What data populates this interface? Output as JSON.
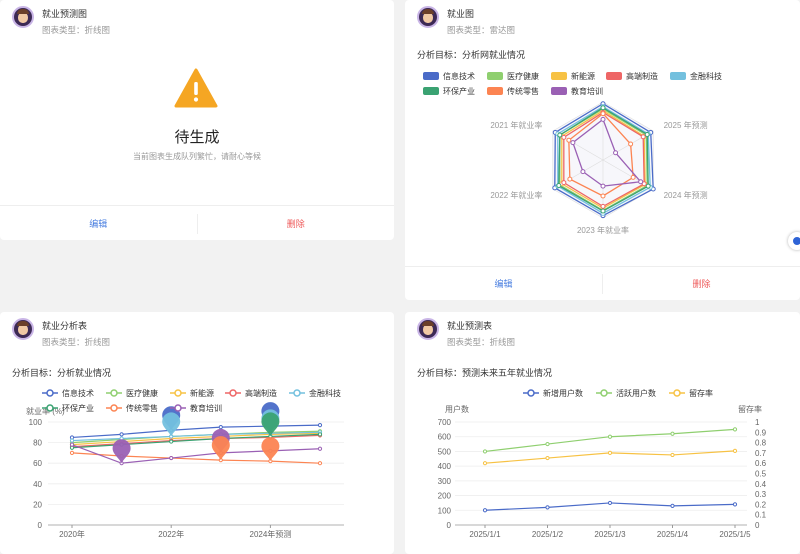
{
  "cards": {
    "predict_chart": {
      "title": "就业预测图",
      "type": "图表类型：折线图",
      "pending_title": "待生成",
      "pending_msg": "当前图表生成队列繁忙，请耐心等候",
      "edit": "编辑",
      "delete": "删除"
    },
    "employment_chart": {
      "title": "就业图",
      "type": "图表类型：雷达图",
      "goal": "分析目标：分析网就业情况",
      "edit": "编辑",
      "delete": "删除"
    },
    "analysis_table": {
      "title": "就业分析表",
      "type": "图表类型：折线图",
      "goal": "分析目标：分析就业情况"
    },
    "forecast_table": {
      "title": "就业预测表",
      "type": "图表类型：折线图",
      "goal": "分析目标：预测未来五年就业情况"
    }
  },
  "colors": {
    "信息技术": "#4a6bc8",
    "医疗健康": "#8fcf6f",
    "新能源": "#f7c244",
    "高端制造": "#ee6666",
    "金融科技": "#73c0de",
    "环保产业": "#3aa272",
    "传统零售": "#fc8452",
    "教育培训": "#9a60b4",
    "warning": "#f5a623",
    "edit": "#4a7fe0",
    "delete": "#ee5a5a"
  },
  "icons": [
    "user-avatar-icon",
    "warning-icon"
  ],
  "chart_data": [
    {
      "type": "radar",
      "indicators": [
        "2025 年预测",
        "2024 年预测",
        "2023 年就业率",
        "2022 年就业率",
        "2021 年就业率"
      ],
      "top_label_hidden_under_legend": true,
      "max": 100,
      "legend": [
        "信息技术",
        "医疗健康",
        "新能源",
        "高端制造",
        "金融科技",
        "环保产业",
        "传统零售",
        "教育培训"
      ],
      "series": [
        {
          "name": "信息技术",
          "values": [
            97,
            95,
            100,
            96,
            96,
            95
          ]
        },
        {
          "name": "医疗健康",
          "values": [
            88,
            86,
            88,
            87,
            86,
            86
          ]
        },
        {
          "name": "新能源",
          "values": [
            85,
            82,
            84,
            83,
            82,
            82
          ]
        },
        {
          "name": "高端制造",
          "values": [
            82,
            80,
            82,
            80,
            78,
            78
          ]
        },
        {
          "name": "金融科技",
          "values": [
            92,
            90,
            94,
            92,
            90,
            90
          ]
        },
        {
          "name": "环保产业",
          "values": [
            90,
            88,
            90,
            88,
            88,
            86
          ]
        },
        {
          "name": "传统零售",
          "values": [
            80,
            55,
            60,
            62,
            66,
            68
          ]
        },
        {
          "name": "教育培训",
          "values": [
            70,
            25,
            75,
            45,
            40,
            60
          ]
        }
      ]
    },
    {
      "type": "line",
      "ylabel": "就业率 (%)",
      "ylim": [
        0,
        100
      ],
      "yticks": [
        0,
        20,
        40,
        60,
        80,
        100
      ],
      "x": [
        "2020年",
        "2021年",
        "2022年",
        "2023年",
        "2024年预测",
        "2025年预测"
      ],
      "x_tick_labels_shown": [
        "2020年",
        "2022年",
        "2024年预测"
      ],
      "legend": [
        "信息技术",
        "医疗健康",
        "新能源",
        "高端制造",
        "金融科技",
        "环保产业",
        "传统零售",
        "教育培训"
      ],
      "series": [
        {
          "name": "信息技术",
          "values": [
            85,
            88,
            92,
            95,
            96,
            97
          ]
        },
        {
          "name": "医疗健康",
          "values": [
            80,
            83,
            86,
            88,
            90,
            91
          ]
        },
        {
          "name": "新能源",
          "values": [
            78,
            81,
            84,
            86,
            88,
            89
          ]
        },
        {
          "name": "高端制造",
          "values": [
            76,
            79,
            82,
            84,
            85,
            87
          ]
        },
        {
          "name": "金融科技",
          "values": [
            82,
            84,
            86,
            88,
            89,
            90
          ]
        },
        {
          "name": "环保产业",
          "values": [
            75,
            78,
            81,
            84,
            86,
            88
          ]
        },
        {
          "name": "传统零售",
          "values": [
            70,
            67,
            65,
            63,
            62,
            60
          ]
        },
        {
          "name": "教育培训",
          "values": [
            78,
            60,
            65,
            70,
            72,
            74
          ]
        }
      ],
      "markers": [
        {
          "series": "信息技术",
          "x": "2022年",
          "value": 92
        },
        {
          "series": "信息技术",
          "x": "2024年预测",
          "value": 96
        },
        {
          "series": "金融科技",
          "x": "2022年",
          "value": 86
        },
        {
          "series": "金融科技",
          "x": "2024年预测",
          "value": 89
        },
        {
          "series": "环保产业",
          "x": "2024年预测",
          "value": 86
        },
        {
          "series": "教育培训",
          "x": "2021年",
          "value": 60
        },
        {
          "series": "教育培训",
          "x": "2023年",
          "value": 70
        },
        {
          "series": "传统零售",
          "x": "2023年",
          "value": 63
        },
        {
          "series": "传统零售",
          "x": "2024年预测",
          "value": 62
        }
      ]
    },
    {
      "type": "line",
      "ylabel": "用户数",
      "y2label": "留存率",
      "ylim": [
        0,
        700
      ],
      "yticks": [
        0,
        100,
        200,
        300,
        400,
        500,
        600,
        700
      ],
      "y2lim": [
        0,
        1
      ],
      "y2ticks": [
        "0",
        "0.1",
        "0.2",
        "0.3",
        "0.4",
        "0.5",
        "0.6",
        "0.7",
        "0.8",
        "0.9",
        "1"
      ],
      "x": [
        "2025/1/1",
        "2025/1/2",
        "2025/1/3",
        "2025/1/4",
        "2025/1/5"
      ],
      "series": [
        {
          "name": "新增用户数",
          "axis": "left",
          "color": "#4a6bc8",
          "values": [
            100,
            120,
            150,
            130,
            140
          ]
        },
        {
          "name": "活跃用户数",
          "axis": "left",
          "color": "#8fcf6f",
          "values": [
            500,
            550,
            600,
            620,
            650
          ]
        },
        {
          "name": "留存率",
          "axis": "right",
          "color": "#f7c244",
          "values": [
            0.6,
            0.65,
            0.7,
            0.68,
            0.72
          ]
        }
      ]
    }
  ]
}
